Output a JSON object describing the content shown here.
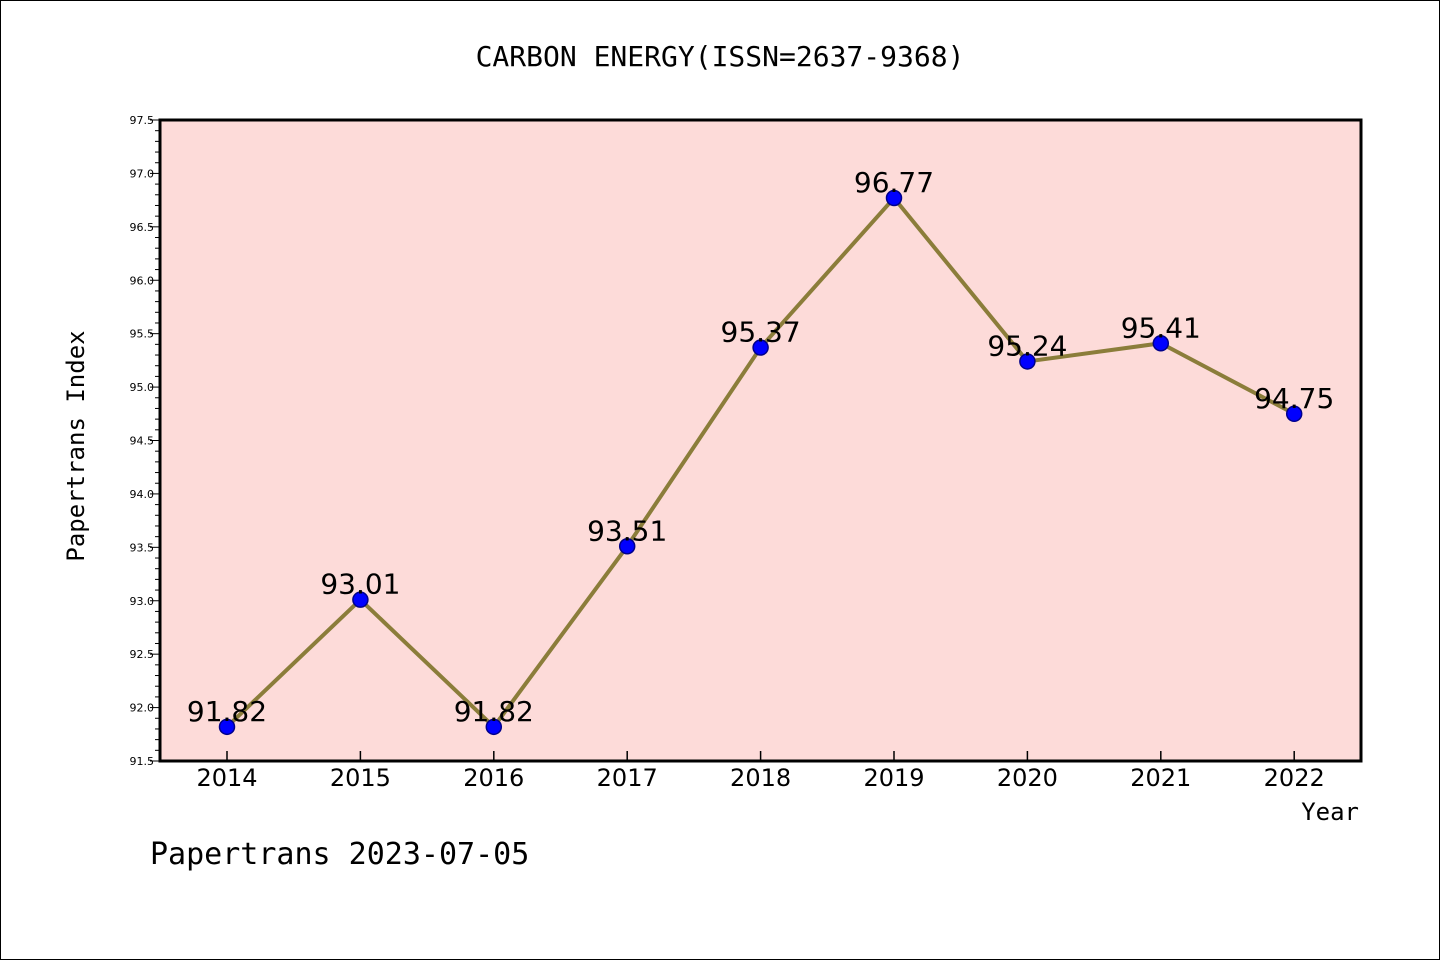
{
  "chart_data": {
    "type": "line",
    "title": "CARBON ENERGY(ISSN=2637-9368)",
    "xlabel": "Year",
    "ylabel": "Papertrans Index",
    "categories": [
      "2014",
      "2015",
      "2016",
      "2017",
      "2018",
      "2019",
      "2020",
      "2021",
      "2022"
    ],
    "series": [
      {
        "values": [
          91.82,
          93.01,
          91.82,
          93.51,
          95.37,
          96.77,
          95.24,
          95.41,
          94.75
        ],
        "labels": [
          "91.82",
          "93.01",
          "91.82",
          "93.51",
          "95.37",
          "96.77",
          "95.24",
          "95.41",
          "94.75"
        ]
      }
    ],
    "ylim": [
      91.5,
      97.5
    ],
    "yticks": [
      "91.5",
      "92.0",
      "92.5",
      "93.0",
      "93.5",
      "94.0",
      "94.5",
      "95.0",
      "95.5",
      "96.0",
      "96.5",
      "97.0",
      "97.5"
    ],
    "grid": false,
    "legend": "none",
    "colors": {
      "plot_background": "#fddbd9",
      "line": "#8b7d3a",
      "marker": "#0000ff",
      "marker_edge": "#00008b"
    }
  },
  "footer": {
    "text": "Papertrans 2023-07-05"
  }
}
